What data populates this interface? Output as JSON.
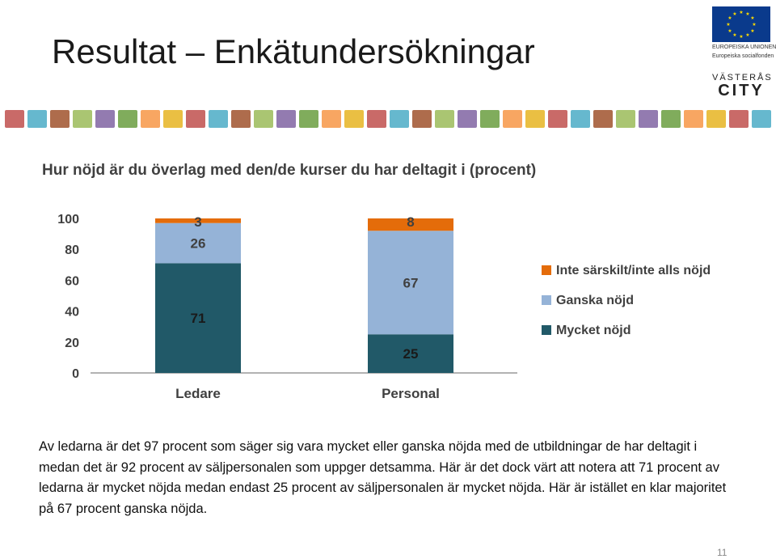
{
  "slide": {
    "title": "Resultat – Enkätundersökningar",
    "page_number": "11",
    "body_text": "Av ledarna är det 97 procent som säger sig vara mycket eller ganska nöjda med de utbildningar de har deltagit i medan det är 92 procent av säljpersonalen som uppger detsamma. Här är det dock värt att notera att 71 procent av ledarna är mycket nöjda medan endast 25 procent av säljpersonalen är mycket nöjda. Här är istället en klar majoritet på 67 procent ganska nöjda."
  },
  "logos": {
    "eu_line1": "EUROPEISKA UNIONEN",
    "eu_line2": "Europeiska socialfonden",
    "city_line1": "VÄSTERÅS",
    "city_line2": "CITY"
  },
  "chart_data": {
    "type": "bar",
    "stacked": true,
    "title": "Hur nöjd är du överlag med den/de kurser du har deltagit i (procent)",
    "categories": [
      "Ledare",
      "Personal"
    ],
    "ylim": [
      0,
      100
    ],
    "yticks": [
      "0",
      "20",
      "40",
      "60",
      "80",
      "100"
    ],
    "legend_position": "right",
    "series": [
      {
        "name": "Mycket nöjd",
        "values": [
          71,
          25
        ],
        "color": "#215968"
      },
      {
        "name": "Ganska nöjd",
        "values": [
          26,
          67
        ],
        "color": "#95b3d7"
      },
      {
        "name": "Inte särskilt/inte alls nöjd",
        "values": [
          3,
          8
        ],
        "color": "#e46c0a"
      }
    ],
    "legend_order": [
      "Inte särskilt/inte alls nöjd",
      "Ganska nöjd",
      "Mycket nöjd"
    ]
  }
}
